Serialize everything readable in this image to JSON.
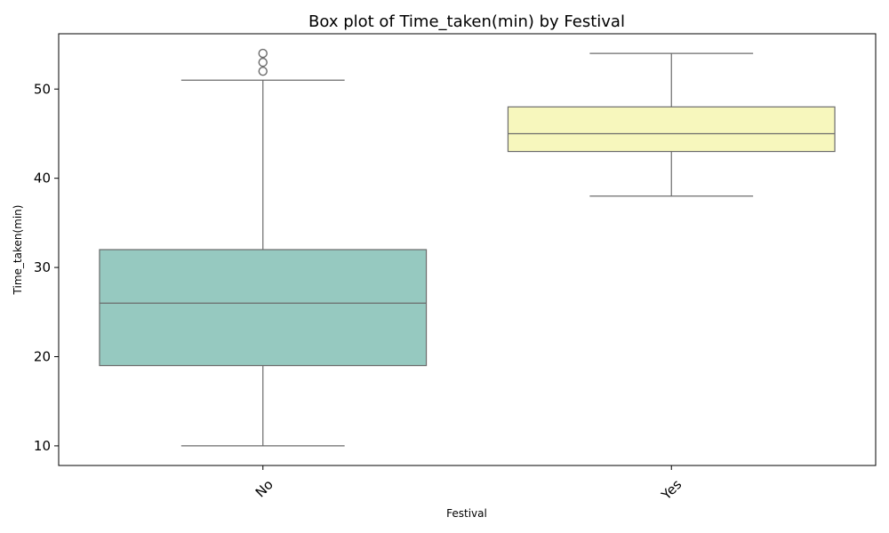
{
  "chart_data": {
    "type": "box",
    "title": "Box plot of Time_taken(min) by Festival",
    "xlabel": "Festival",
    "ylabel": "Time_taken(min)",
    "categories": [
      "No",
      "Yes"
    ],
    "ylim": [
      7.8,
      56.2
    ],
    "yticks": [
      10,
      20,
      30,
      40,
      50
    ],
    "grid": false,
    "boxes": [
      {
        "category": "No",
        "whisker_low": 10,
        "q1": 19,
        "median": 26,
        "q3": 32,
        "whisker_high": 51,
        "outliers": [
          52,
          53,
          54
        ],
        "color": "#96c9c0"
      },
      {
        "category": "Yes",
        "whisker_low": 38,
        "q1": 43,
        "median": 45,
        "q3": 48,
        "whisker_high": 54,
        "outliers": [],
        "color": "#f7f7bd"
      }
    ],
    "line_color": "#6b6b6b"
  }
}
